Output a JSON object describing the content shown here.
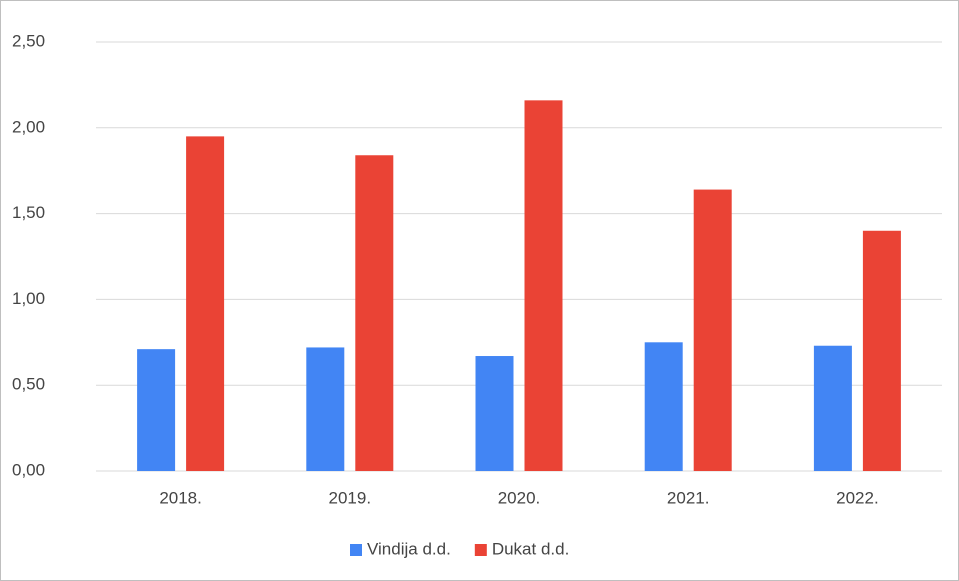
{
  "chart_data": {
    "type": "bar",
    "categories": [
      "2018.",
      "2019.",
      "2020.",
      "2021.",
      "2022."
    ],
    "series": [
      {
        "name": "Vindija d.d.",
        "color": "#4285f4",
        "values": [
          0.71,
          0.72,
          0.67,
          0.75,
          0.73
        ]
      },
      {
        "name": "Dukat d.d.",
        "color": "#ea4335",
        "values": [
          1.95,
          1.84,
          2.16,
          1.64,
          1.4
        ]
      }
    ],
    "ylim": [
      0,
      2.5
    ],
    "yticks": [
      {
        "value": 0,
        "label": "0,00"
      },
      {
        "value": 0.5,
        "label": "0,50"
      },
      {
        "value": 1,
        "label": "1,00"
      },
      {
        "value": 1.5,
        "label": "1,50"
      },
      {
        "value": 2,
        "label": "2,00"
      },
      {
        "value": 2.5,
        "label": "2,50"
      }
    ],
    "grid": true,
    "legend": "bottom"
  }
}
